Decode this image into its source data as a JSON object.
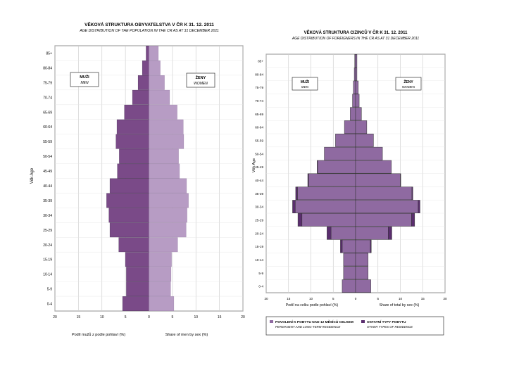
{
  "colors": {
    "men": "#7a4a88",
    "women": "#b79cc4",
    "men_dark": "#4a2f57",
    "foreign_permanent": "#8f6aa1",
    "foreign_other": "#5a2d6e",
    "grid": "#c8c8c8",
    "axis": "#333333"
  },
  "chart_data": [
    {
      "type": "bar",
      "title": "VĚKOVÁ STRUKTURA OBYVATELSTVA V ČR K 31. 12. 2011",
      "subtitle": "AGE DISTRIBUTION OF THE POPULATION IN THE CR AS AT 31 DECEMBER 2011",
      "ylabel": "Věk   Age",
      "xlabel_left": "Podíl mužů z podle pohlaví (%)",
      "xlabel_right": "Share of men by sex (%)",
      "label_men_cz": "MUŽI",
      "label_men_en": "MEN",
      "label_women_cz": "ŽENY",
      "label_women_en": "WOMEN",
      "xlim": [
        -20,
        20
      ],
      "x_ticks": [
        "20",
        "15",
        "10",
        "5",
        "0",
        "5",
        "10",
        "15",
        "20"
      ],
      "grid": true,
      "categories": [
        "0-4",
        "5-9",
        "10-14",
        "15-19",
        "20-24",
        "25-29",
        "30-34",
        "35-39",
        "40-44",
        "45-49",
        "50-54",
        "55-59",
        "60-64",
        "65-69",
        "70-74",
        "75-79",
        "80-84",
        "85+"
      ],
      "category_labels": [
        "0-4",
        "5-9",
        "10-14",
        "15-19",
        "20-24",
        "25-29",
        "30-34",
        "35-39",
        "40-44",
        "45-49",
        "50-54",
        "55-59",
        "60-64",
        "65-69",
        "70-74",
        "75-79",
        "80-84",
        "85+"
      ],
      "series": [
        {
          "name": "MUŽI",
          "values": [
            5.6,
            4.8,
            4.8,
            5.0,
            6.4,
            8.3,
            8.5,
            9.0,
            8.3,
            6.7,
            6.3,
            7.0,
            6.8,
            5.2,
            3.5,
            2.3,
            1.4,
            0.6
          ]
        },
        {
          "name": "ŽENY",
          "values": [
            5.3,
            4.6,
            4.7,
            4.8,
            6.1,
            7.9,
            8.1,
            8.4,
            8.0,
            6.5,
            6.3,
            7.4,
            7.3,
            6.0,
            4.4,
            3.3,
            2.4,
            2.0
          ]
        }
      ]
    },
    {
      "type": "bar",
      "title": "VĚKOVÁ STRUKTURA CIZINCŮ V ČR K 31. 12. 2011",
      "subtitle": "AGE DISTRIBUTION OF FOREIGNERS IN THE CR AS AT 31 DECEMBER 2011",
      "ylabel": "Věk   Age",
      "xlabel_left": "Podíl na celku podle pohlaví (%)",
      "xlabel_right": "Share of total by sex (%)",
      "label_men_cz": "MUŽI",
      "label_men_en": "MEN",
      "label_women_cz": "ŽENY",
      "label_women_en": "WOMEN",
      "xlim": [
        -20,
        20
      ],
      "x_ticks": [
        "20",
        "15",
        "10",
        "5",
        "0",
        "5",
        "10",
        "15",
        "20"
      ],
      "grid": true,
      "categories": [
        "0-4",
        "5-9",
        "10-14",
        "15-19",
        "20-24",
        "25-29",
        "30-34",
        "35-39",
        "40-44",
        "45-49",
        "50-54",
        "55-59",
        "60-64",
        "65-69",
        "70-74",
        "75-79",
        "80-84",
        "85+"
      ],
      "category_labels": [
        "0-4",
        "5-9",
        "10-14",
        "15-19",
        "20-24",
        "25-29",
        "30-34",
        "35-39",
        "40-44",
        "45-49",
        "50-54",
        "55-59",
        "60-64",
        "65-69",
        "70-74",
        "75-79",
        "80-84",
        "85+"
      ],
      "legend_placement": "bottom",
      "legend": [
        {
          "label_cz": "POVOLENÍ K POBYTU NAD 12 MĚSÍCŮ CELKEM",
          "label_en": "PERMANENT AND LONG-TERM RESIDENCE"
        },
        {
          "label_cz": "OSTATNÍ TYPY POBYTU",
          "label_en": "OTHER TYPES OF RESIDENCE"
        }
      ],
      "series": [
        {
          "name": "MEN permanent",
          "values": [
            3.0,
            2.7,
            2.7,
            3.0,
            5.5,
            12.0,
            13.5,
            13.0,
            10.5,
            8.5,
            7.0,
            4.5,
            2.5,
            1.2,
            0.7,
            0.5,
            0.3,
            0.2
          ]
        },
        {
          "name": "MEN other",
          "values": [
            0.0,
            0.0,
            0.0,
            0.4,
            0.9,
            0.9,
            0.6,
            0.4,
            0.2,
            0.1,
            0.0,
            0.0,
            0.0,
            0.0,
            0.0,
            0.0,
            0.0,
            0.0
          ]
        },
        {
          "name": "WOMEN permanent",
          "values": [
            3.4,
            2.8,
            2.8,
            3.3,
            7.3,
            12.5,
            14.0,
            12.6,
            10.0,
            8.0,
            6.0,
            4.0,
            2.5,
            1.3,
            0.8,
            0.6,
            0.3,
            0.3
          ]
        },
        {
          "name": "WOMEN other",
          "values": [
            0.0,
            0.0,
            0.0,
            0.2,
            0.8,
            0.7,
            0.4,
            0.2,
            0.1,
            0.0,
            0.0,
            0.0,
            0.0,
            0.0,
            0.0,
            0.0,
            0.0,
            0.0
          ]
        }
      ]
    }
  ]
}
